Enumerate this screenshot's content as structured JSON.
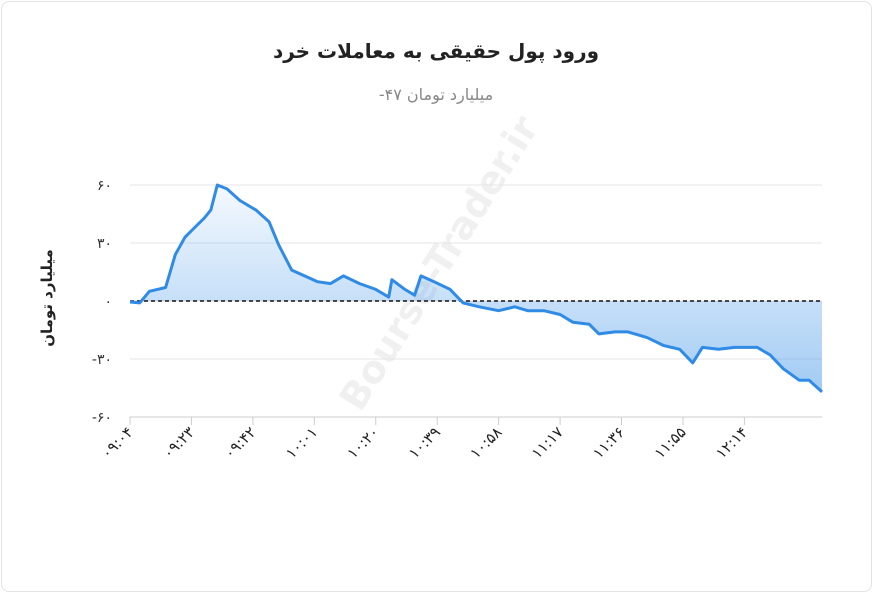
{
  "chart_data": {
    "type": "area",
    "title": "ورود پول حقیقی به معاملات خرد",
    "subtitle": "میلیارد تومان ۴۷-",
    "y_label": "میلیارد تومان",
    "watermark": "Bourse-Trader.ir",
    "color": "#2f8be6",
    "grid": true,
    "zero_line": true,
    "x": [
      "09:04",
      "09:07",
      "09:10",
      "09:15",
      "09:18",
      "09:21",
      "09:24",
      "09:27",
      "09:29",
      "09:31",
      "09:34",
      "09:38",
      "09:43",
      "09:47",
      "09:50",
      "09:54",
      "09:58",
      "10:02",
      "10:06",
      "10:10",
      "10:15",
      "10:20",
      "10:24",
      "10:25",
      "10:29",
      "10:32",
      "10:34",
      "10:38",
      "10:43",
      "10:47",
      "10:52",
      "10:58",
      "11:03",
      "11:07",
      "11:12",
      "11:17",
      "11:21",
      "11:26",
      "11:29",
      "11:34",
      "11:38",
      "11:44",
      "11:49",
      "11:54",
      "11:58",
      "12:01",
      "12:06",
      "12:11",
      "12:18",
      "12:22",
      "12:26",
      "12:31",
      "12:34",
      "12:38"
    ],
    "values": [
      -0.5,
      -1,
      5,
      7,
      24,
      33,
      38,
      43,
      47,
      60,
      58,
      52,
      47,
      41,
      29,
      16,
      13,
      10,
      9,
      13,
      9,
      6,
      2,
      11,
      6,
      3,
      13,
      10,
      6,
      -1,
      -3,
      -5,
      -3,
      -5,
      -5,
      -7,
      -11,
      -12,
      -17,
      -16,
      -16,
      -19,
      -23,
      -25,
      -32,
      -24,
      -25,
      -24,
      -24,
      -28,
      -35,
      -41,
      -41,
      -47
    ],
    "xlim": [
      "09:04",
      "12:38"
    ],
    "xticks": [
      {
        "value": "09:04",
        "label": "۰۹:۰۴"
      },
      {
        "value": "09:23",
        "label": "۰۹:۲۳"
      },
      {
        "value": "09:42",
        "label": "۰۹:۴۲"
      },
      {
        "value": "10:01",
        "label": "۱۰:۰۱"
      },
      {
        "value": "10:20",
        "label": "۱۰:۲۰"
      },
      {
        "value": "10:39",
        "label": "۱۰:۳۹"
      },
      {
        "value": "10:58",
        "label": "۱۰:۵۸"
      },
      {
        "value": "11:17",
        "label": "۱۱:۱۷"
      },
      {
        "value": "11:36",
        "label": "۱۱:۳۶"
      },
      {
        "value": "11:55",
        "label": "۱۱:۵۵"
      },
      {
        "value": "12:14",
        "label": "۱۲:۱۴"
      }
    ],
    "ylim": [
      -60,
      60
    ],
    "yticks": [
      {
        "value": 60,
        "label": "۶۰"
      },
      {
        "value": 30,
        "label": "۳۰"
      },
      {
        "value": 0,
        "label": "۰"
      },
      {
        "value": -30,
        "label": "-۳۰"
      },
      {
        "value": -60,
        "label": "-۶۰"
      }
    ]
  }
}
